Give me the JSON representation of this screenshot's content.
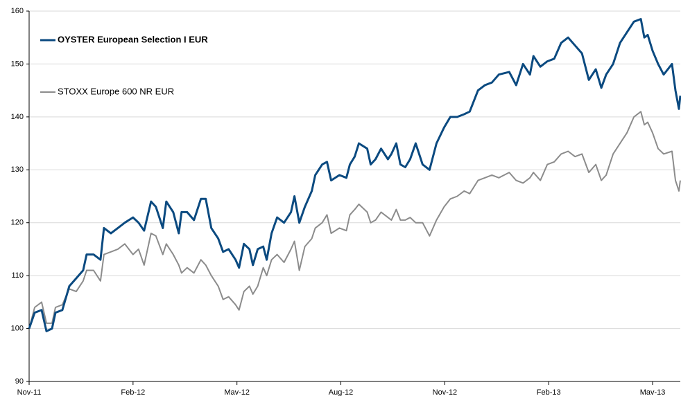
{
  "chart_data": {
    "type": "line",
    "x": [
      0,
      0.16,
      0.36,
      0.5,
      0.66,
      0.76,
      0.96,
      1.16,
      1.36,
      1.56,
      1.66,
      1.86,
      2.06,
      2.16,
      2.36,
      2.56,
      2.76,
      3,
      3.16,
      3.32,
      3.52,
      3.66,
      3.86,
      3.96,
      4.16,
      4.32,
      4.4,
      4.56,
      4.76,
      4.96,
      5.1,
      5.26,
      5.46,
      5.6,
      5.76,
      5.96,
      6.06,
      6.2,
      6.36,
      6.46,
      6.6,
      6.76,
      6.86,
      7,
      7.16,
      7.36,
      7.56,
      7.66,
      7.8,
      7.96,
      8.16,
      8.26,
      8.46,
      8.6,
      8.72,
      8.96,
      9.16,
      9.26,
      9.4,
      9.52,
      9.76,
      9.86,
      10,
      10.16,
      10.36,
      10.46,
      10.6,
      10.72,
      10.86,
      11,
      11.16,
      11.36,
      11.56,
      11.76,
      11.98,
      12.16,
      12.36,
      12.56,
      12.72,
      12.96,
      13.16,
      13.36,
      13.56,
      13.86,
      14.06,
      14.26,
      14.46,
      14.56,
      14.76,
      14.96,
      15.16,
      15.36,
      15.56,
      15.76,
      15.96,
      16.16,
      16.36,
      16.52,
      16.66,
      16.86,
      17.06,
      17.26,
      17.46,
      17.66,
      17.76,
      17.86,
      18,
      18.16,
      18.32,
      18.56,
      18.66,
      18.76,
      18.8
    ],
    "series": [
      {
        "name": "OYSTER European Selection I EUR",
        "color": "#0b4a80",
        "values": [
          100,
          103,
          103.5,
          99.5,
          100,
          103,
          103.5,
          108,
          109.5,
          111,
          114,
          114,
          113,
          119,
          118,
          119,
          120,
          121,
          120,
          118.5,
          124,
          123,
          119,
          124,
          122,
          118,
          122,
          122,
          120.5,
          124.5,
          124.5,
          119,
          117,
          114.5,
          115,
          113,
          111.5,
          116,
          115,
          112,
          115,
          115.5,
          113,
          118,
          121,
          120,
          122,
          125,
          120,
          123,
          126,
          129,
          131,
          131.5,
          128,
          129,
          128.5,
          131,
          132.5,
          135,
          134,
          131,
          132,
          134,
          132,
          133,
          135,
          131,
          130.5,
          132,
          135,
          131,
          130,
          135,
          138,
          140,
          140,
          140.5,
          141,
          145,
          146,
          146.5,
          148,
          148.5,
          146,
          150,
          148,
          151.5,
          149.5,
          150.5,
          151,
          154,
          155,
          153.5,
          152,
          147,
          149,
          145.5,
          148,
          150,
          154,
          156,
          158,
          158.5,
          155,
          155.5,
          152.5,
          150,
          148,
          150,
          145,
          141.5,
          144
        ]
      },
      {
        "name": "STOXX Europe 600 NR EUR",
        "color": "#8c8c8c",
        "values": [
          100,
          104,
          105,
          101,
          101,
          104,
          104.5,
          107.5,
          107,
          109,
          111,
          111,
          109,
          114,
          114.5,
          115,
          116,
          114,
          115,
          112,
          118,
          117.5,
          114,
          116,
          114,
          112,
          110.5,
          111.5,
          110.5,
          113,
          112,
          110,
          108,
          105.5,
          106,
          104.5,
          103.5,
          107,
          108,
          106.5,
          108,
          111.5,
          110,
          113,
          114,
          112.5,
          115,
          116.5,
          111,
          115.5,
          117,
          119,
          120,
          121.5,
          118,
          119,
          118.5,
          121.5,
          122.5,
          123.5,
          122,
          120,
          120.5,
          122,
          121,
          120.5,
          122.5,
          120.5,
          120.5,
          121,
          120,
          120,
          117.5,
          120.5,
          123,
          124.5,
          125,
          126,
          125.5,
          128,
          128.5,
          129,
          128.5,
          129.5,
          128,
          127.5,
          128.5,
          129.5,
          128,
          131,
          131.5,
          133,
          133.5,
          132.5,
          133,
          129.5,
          131,
          128,
          129,
          133,
          135,
          137,
          140,
          141,
          138.5,
          139,
          137,
          134,
          133,
          133.5,
          128,
          126,
          128
        ]
      }
    ],
    "xlim": [
      0,
      18.8
    ],
    "xticks": [
      {
        "value": 0,
        "label": "Nov-11"
      },
      {
        "value": 3,
        "label": "Feb-12"
      },
      {
        "value": 6,
        "label": "Mav-12"
      },
      {
        "value": 9,
        "label": "Aug-12"
      },
      {
        "value": 12,
        "label": "Nov-12"
      },
      {
        "value": 15,
        "label": "Feb-13"
      },
      {
        "value": 18,
        "label": "Mav-13"
      }
    ],
    "ylim": [
      90,
      160
    ],
    "yticks": [
      90,
      100,
      110,
      120,
      130,
      140,
      150,
      160
    ],
    "grid": true,
    "legend": "top-left"
  }
}
